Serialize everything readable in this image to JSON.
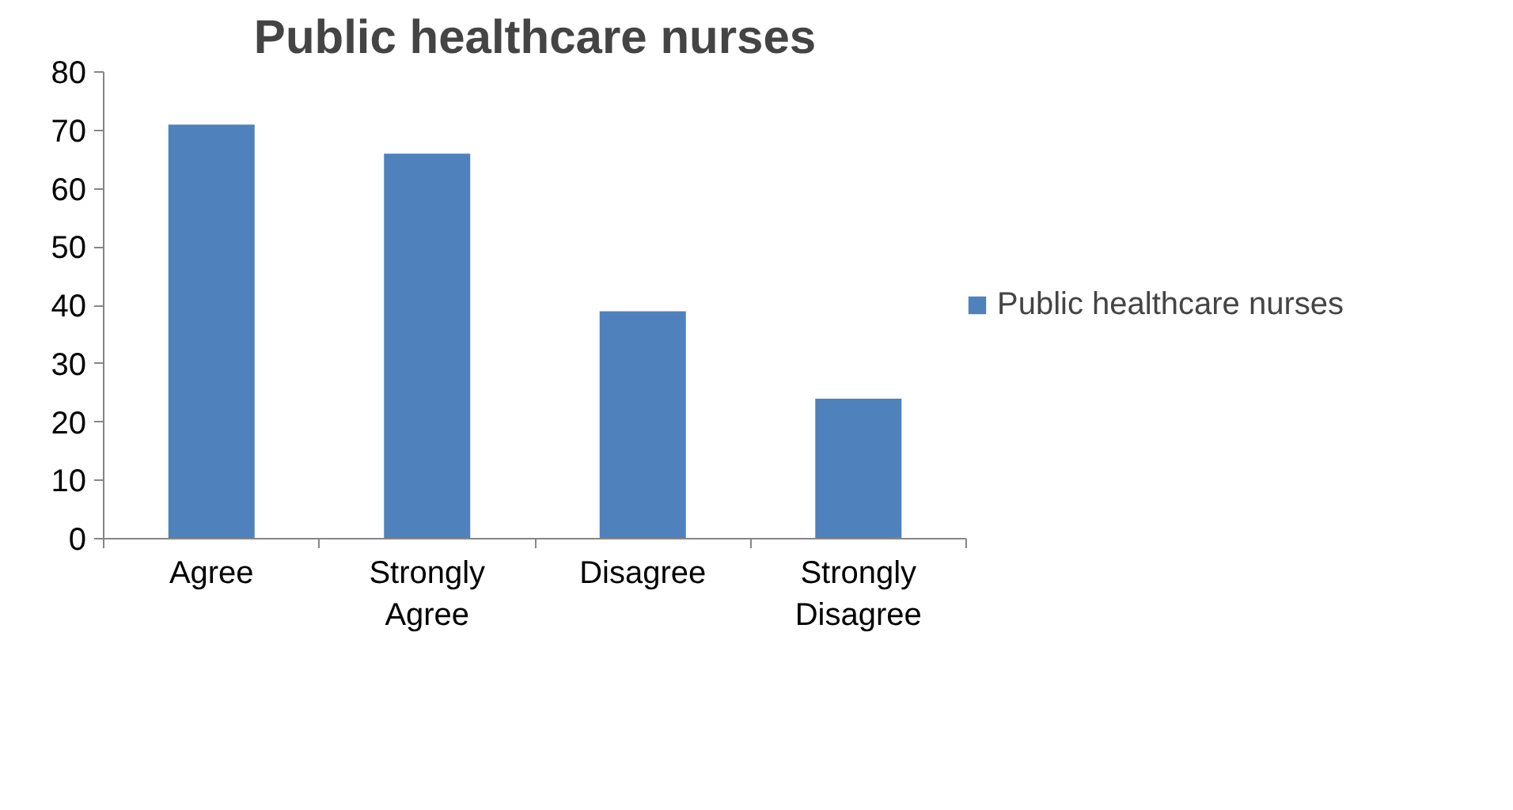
{
  "chart_data": {
    "type": "bar",
    "title": "Public healthcare nurses",
    "categories": [
      "Agree",
      "Strongly Agree",
      "Disagree",
      "Strongly Disagree"
    ],
    "series": [
      {
        "name": "Public healthcare nurses",
        "color": "#4f81bd",
        "values": [
          71,
          66,
          39,
          24
        ]
      }
    ],
    "ylim": [
      0,
      80
    ],
    "yticks": [
      0,
      10,
      20,
      30,
      40,
      50,
      60,
      70,
      80
    ],
    "grid": false,
    "legend": "right"
  }
}
